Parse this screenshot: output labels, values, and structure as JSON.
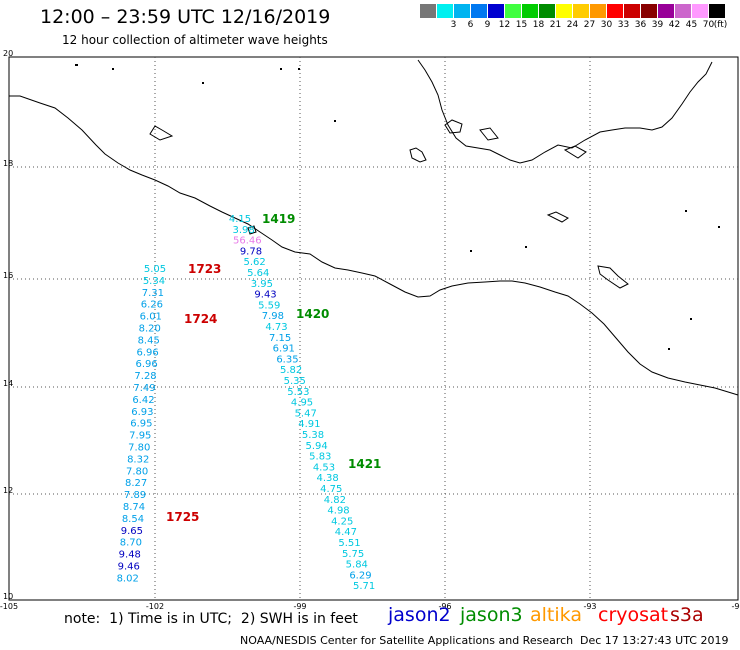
{
  "header": {
    "title": "12:00 – 23:59 UTC 12/16/2019",
    "subtitle": "12 hour collection of altimeter wave heights"
  },
  "legend": {
    "unit_label": "(ft)",
    "bins": [
      {
        "label": "",
        "color": "#777777"
      },
      {
        "label": "3",
        "color": "#00f0f0"
      },
      {
        "label": "6",
        "color": "#00b4f0"
      },
      {
        "label": "9",
        "color": "#0078f0"
      },
      {
        "label": "12",
        "color": "#0000d0"
      },
      {
        "label": "15",
        "color": "#40ff40"
      },
      {
        "label": "18",
        "color": "#00cc00"
      },
      {
        "label": "21",
        "color": "#008c00"
      },
      {
        "label": "24",
        "color": "#ffff00"
      },
      {
        "label": "27",
        "color": "#ffcc00"
      },
      {
        "label": "30",
        "color": "#ff9900"
      },
      {
        "label": "33",
        "color": "#ff0000"
      },
      {
        "label": "36",
        "color": "#cc0000"
      },
      {
        "label": "39",
        "color": "#880000"
      },
      {
        "label": "42",
        "color": "#990099"
      },
      {
        "label": "45",
        "color": "#cc66cc"
      },
      {
        "label": "70",
        "color": "#ff99ff"
      },
      {
        "label": "",
        "color": "#000000"
      }
    ]
  },
  "axes": {
    "lat_labels": [
      "20",
      "18",
      "16",
      "14",
      "12",
      "10"
    ],
    "lon_labels": [
      "-105",
      "-102",
      "-99",
      "-96",
      "-93",
      "-90"
    ]
  },
  "passes": [
    {
      "label": "1419",
      "color": "#008c00"
    },
    {
      "label": "1723",
      "color": "#cc0000"
    },
    {
      "label": "1724",
      "color": "#cc0000"
    },
    {
      "label": "1420",
      "color": "#008c00"
    },
    {
      "label": "1421",
      "color": "#008c00"
    },
    {
      "label": "1725",
      "color": "#cc0000"
    }
  ],
  "track_a": [
    {
      "v": "5.05",
      "c": "#00c8e0"
    },
    {
      "v": "5.34",
      "c": "#00c8e0"
    },
    {
      "v": "7.31",
      "c": "#00a0e8"
    },
    {
      "v": "6.26",
      "c": "#00a0e8"
    },
    {
      "v": "6.01",
      "c": "#00a0e8"
    },
    {
      "v": "8.20",
      "c": "#00a0e8"
    },
    {
      "v": "8.45",
      "c": "#00a0e8"
    },
    {
      "v": "6.96",
      "c": "#00a0e8"
    },
    {
      "v": "6.96",
      "c": "#00a0e8"
    },
    {
      "v": "7.28",
      "c": "#00a0e8"
    },
    {
      "v": "7.49",
      "c": "#00a0e8"
    },
    {
      "v": "6.42",
      "c": "#00a0e8"
    },
    {
      "v": "6.93",
      "c": "#00a0e8"
    },
    {
      "v": "6.95",
      "c": "#00a0e8"
    },
    {
      "v": "7.95",
      "c": "#00a0e8"
    },
    {
      "v": "7.80",
      "c": "#00a0e8"
    },
    {
      "v": "8.32",
      "c": "#00a0e8"
    },
    {
      "v": "7.80",
      "c": "#00a0e8"
    },
    {
      "v": "8.27",
      "c": "#00a0e8"
    },
    {
      "v": "7.89",
      "c": "#00a0e8"
    },
    {
      "v": "8.74",
      "c": "#00a0e8"
    },
    {
      "v": "8.54",
      "c": "#00a0e8"
    },
    {
      "v": "9.65",
      "c": "#0000c0"
    },
    {
      "v": "8.70",
      "c": "#00a0e8"
    },
    {
      "v": "9.48",
      "c": "#0000c0"
    },
    {
      "v": "9.46",
      "c": "#0000c0"
    },
    {
      "v": "8.02",
      "c": "#00a0e8"
    }
  ],
  "track_b": [
    {
      "v": "4.15",
      "c": "#00c8e0"
    },
    {
      "v": "3.98",
      "c": "#00c8e0"
    },
    {
      "v": "56.46",
      "c": "#e87ae8"
    },
    {
      "v": "9.78",
      "c": "#0000c0"
    },
    {
      "v": "5.62",
      "c": "#00c8e0"
    },
    {
      "v": "5.64",
      "c": "#00c8e0"
    },
    {
      "v": "3.95",
      "c": "#00c8e0"
    },
    {
      "v": "9.43",
      "c": "#0000c0"
    },
    {
      "v": "5.59",
      "c": "#00c8e0"
    },
    {
      "v": "7.98",
      "c": "#00a0e8"
    },
    {
      "v": "4.73",
      "c": "#00c8e0"
    },
    {
      "v": "7.15",
      "c": "#00a0e8"
    },
    {
      "v": "6.91",
      "c": "#00a0e8"
    },
    {
      "v": "6.35",
      "c": "#00a0e8"
    },
    {
      "v": "5.82",
      "c": "#00c8e0"
    },
    {
      "v": "5.35",
      "c": "#00c8e0"
    },
    {
      "v": "5.53",
      "c": "#00c8e0"
    },
    {
      "v": "4.95",
      "c": "#00c8e0"
    },
    {
      "v": "5.47",
      "c": "#00c8e0"
    },
    {
      "v": "4.91",
      "c": "#00c8e0"
    },
    {
      "v": "5.38",
      "c": "#00c8e0"
    },
    {
      "v": "5.94",
      "c": "#00c8e0"
    },
    {
      "v": "5.83",
      "c": "#00c8e0"
    },
    {
      "v": "4.53",
      "c": "#00c8e0"
    },
    {
      "v": "4.38",
      "c": "#00c8e0"
    },
    {
      "v": "4.75",
      "c": "#00c8e0"
    },
    {
      "v": "4.82",
      "c": "#00c8e0"
    },
    {
      "v": "4.98",
      "c": "#00c8e0"
    },
    {
      "v": "4.25",
      "c": "#00c8e0"
    },
    {
      "v": "4.47",
      "c": "#00c8e0"
    },
    {
      "v": "5.51",
      "c": "#00c8e0"
    },
    {
      "v": "5.75",
      "c": "#00c8e0"
    },
    {
      "v": "5.84",
      "c": "#00c8e0"
    },
    {
      "v": "6.29",
      "c": "#00a0e8"
    },
    {
      "v": "5.71",
      "c": "#00c8e0"
    }
  ],
  "footer": {
    "note": "note:  1) Time is in UTC;  2) SWH is in feet",
    "satellites": [
      {
        "name": "jason2",
        "color": "#0000cc"
      },
      {
        "name": "jason3",
        "color": "#008c00"
      },
      {
        "name": "altika",
        "color": "#ff9900"
      },
      {
        "name": "cryosat",
        "color": "#ff0000"
      },
      {
        "name": "s3a",
        "color": "#aa0000"
      }
    ],
    "credit": "NOAA/NESDIS Center for Satellite Applications and Research",
    "timestamp": "Dec 17 13:27:43 UTC 2019"
  }
}
